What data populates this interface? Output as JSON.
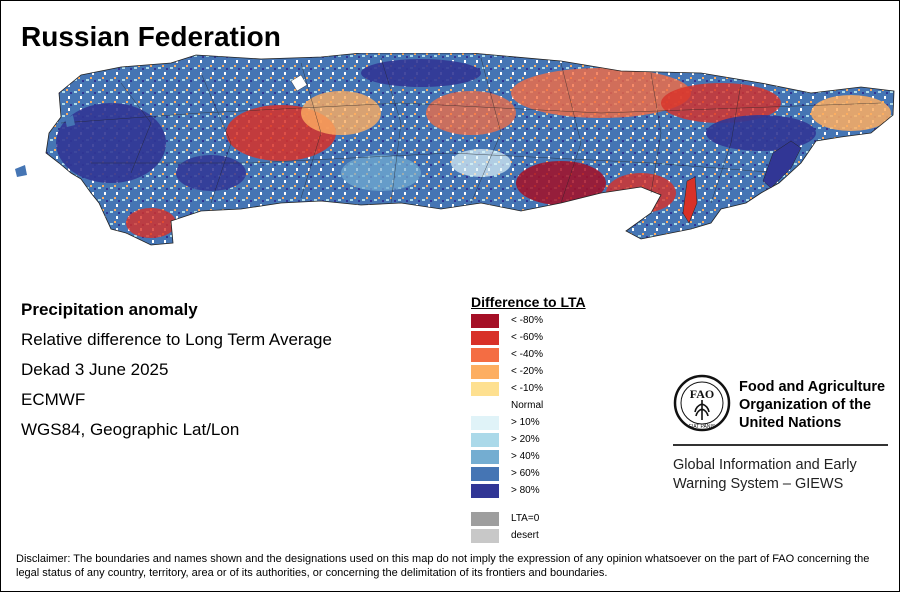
{
  "title": "Russian Federation",
  "info": {
    "heading": "Precipitation anomaly",
    "subtitle": "Relative difference to Long Term Average",
    "period": "Dekad 3 June 2025",
    "source": "ECMWF",
    "projection": "WGS84, Geographic Lat/Lon"
  },
  "legend": {
    "title": "Difference to LTA",
    "items": [
      {
        "label": "< -80%",
        "color": "#a50f26"
      },
      {
        "label": "< -60%",
        "color": "#d83128"
      },
      {
        "label": "< -40%",
        "color": "#f46d43"
      },
      {
        "label": "< -20%",
        "color": "#fdae61"
      },
      {
        "label": "< -10%",
        "color": "#fee090"
      },
      {
        "label": "Normal",
        "color": "#ffffff"
      },
      {
        "label": "> 10%",
        "color": "#e0f3f8"
      },
      {
        "label": "> 20%",
        "color": "#abd9e9"
      },
      {
        "label": "> 40%",
        "color": "#74add1"
      },
      {
        "label": "> 60%",
        "color": "#4575b4"
      },
      {
        "label": "> 80%",
        "color": "#313695"
      },
      {
        "label": "LTA=0",
        "color": "#9e9e9e"
      },
      {
        "label": "desert",
        "color": "#c8c8c8"
      }
    ]
  },
  "fao": {
    "logo_text": "FAO",
    "logo_motto": "FIAT PANIS",
    "name_line1": "Food and Agriculture",
    "name_line2": "Organization of the",
    "name_line3": "United Nations",
    "giews_line1": "Global Information and Early",
    "giews_line2": "Warning System – GIEWS"
  },
  "disclaimer": "Disclaimer: The boundaries and names shown and the designations used on this map do not imply the expression of any opinion whatsoever on the part of FAO concerning the legal status of any country, territory, area or of its authorities, or concerning the delimitation of its frontiers and boundaries."
}
